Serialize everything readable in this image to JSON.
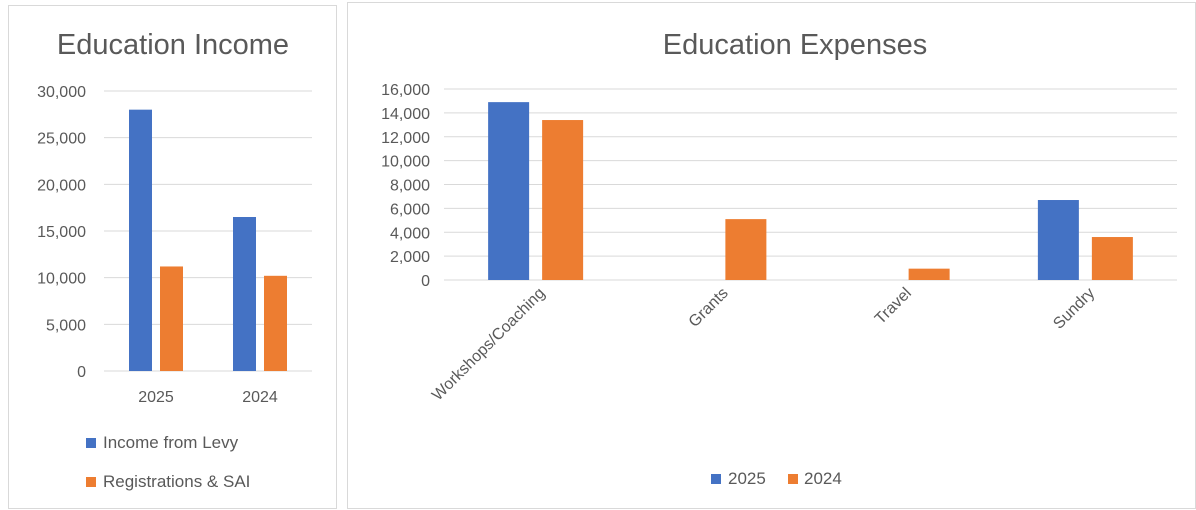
{
  "colors": {
    "series_2025": "#4472c4",
    "series_2024": "#ed7d31",
    "grid": "#d9d9d9",
    "text": "#595959"
  },
  "chart_data": [
    {
      "type": "bar",
      "title": "Education Income",
      "categories": [
        "2025",
        "2024"
      ],
      "series": [
        {
          "name": "Income from Levy",
          "values": [
            28000,
            16500
          ]
        },
        {
          "name": "Registrations & SAI",
          "values": [
            11200,
            10200
          ]
        }
      ],
      "y_ticks": [
        "0",
        "5,000",
        "10,000",
        "15,000",
        "20,000",
        "25,000",
        "30,000"
      ],
      "ylim": [
        0,
        30000
      ],
      "grid": true,
      "legend_position": "bottom"
    },
    {
      "type": "bar",
      "title": "Education Expenses",
      "categories": [
        "Workshops/Coaching",
        "Grants",
        "Travel",
        "Sundry"
      ],
      "series": [
        {
          "name": "2025",
          "values": [
            14900,
            0,
            0,
            6700
          ]
        },
        {
          "name": "2024",
          "values": [
            13400,
            5100,
            950,
            3600
          ]
        }
      ],
      "y_ticks": [
        "0",
        "2,000",
        "4,000",
        "6,000",
        "8,000",
        "10,000",
        "12,000",
        "14,000",
        "16,000"
      ],
      "ylim": [
        0,
        16000
      ],
      "grid": true,
      "legend_position": "bottom"
    }
  ]
}
